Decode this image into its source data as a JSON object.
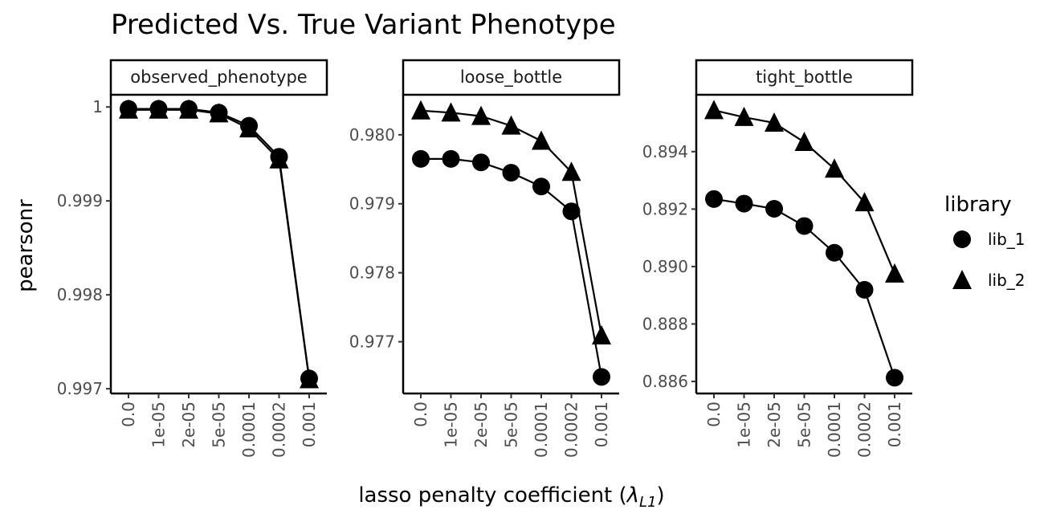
{
  "chart_data": {
    "type": "line",
    "title": "Predicted Vs. True Variant Phenotype",
    "xlabel_prefix": "lasso penalty coefficient (",
    "xlabel_symbol": "λ",
    "xlabel_subscript": "L1",
    "xlabel_suffix": ")",
    "ylabel": "pearsonr",
    "categories": [
      "0.0",
      "1e-05",
      "2e-05",
      "5e-05",
      "0.0001",
      "0.0002",
      "0.001"
    ],
    "legend": {
      "title": "library",
      "entries": [
        {
          "name": "lib_1",
          "marker": "circle"
        },
        {
          "name": "lib_2",
          "marker": "triangle"
        }
      ]
    },
    "panels": [
      {
        "strip": "observed_phenotype",
        "ylim": [
          0.99695,
          1.00013
        ],
        "yticks": [
          0.997,
          0.998,
          0.999,
          1
        ],
        "ytick_labels": [
          "0.997",
          "0.998",
          "0.999",
          "1"
        ],
        "series": [
          {
            "name": "lib_1",
            "marker": "circle",
            "values": [
              0.99998,
              0.99998,
              0.99998,
              0.99994,
              0.9998,
              0.99947,
              0.99711
            ]
          },
          {
            "name": "lib_2",
            "marker": "triangle",
            "values": [
              0.99997,
              0.99997,
              0.99997,
              0.99993,
              0.99977,
              0.99944,
              0.9971
            ]
          }
        ]
      },
      {
        "strip": "loose_bottle",
        "ylim": [
          0.97625,
          0.98058
        ],
        "yticks": [
          0.977,
          0.978,
          0.979,
          0.98
        ],
        "ytick_labels": [
          "0.977",
          "0.978",
          "0.979",
          "0.980"
        ],
        "series": [
          {
            "name": "lib_1",
            "marker": "circle",
            "values": [
              0.97965,
              0.97965,
              0.9796,
              0.97945,
              0.97925,
              0.97889,
              0.97649
            ]
          },
          {
            "name": "lib_2",
            "marker": "triangle",
            "values": [
              0.98035,
              0.98032,
              0.98027,
              0.98013,
              0.97991,
              0.97946,
              0.97709
            ]
          }
        ]
      },
      {
        "strip": "tight_bottle",
        "ylim": [
          0.88558,
          0.89598
        ],
        "yticks": [
          0.886,
          0.888,
          0.89,
          0.892,
          0.894
        ],
        "ytick_labels": [
          "0.886",
          "0.888",
          "0.890",
          "0.892",
          "0.894"
        ],
        "series": [
          {
            "name": "lib_1",
            "marker": "circle",
            "values": [
              0.89235,
              0.89219,
              0.89201,
              0.89141,
              0.89048,
              0.88919,
              0.88613
            ]
          },
          {
            "name": "lib_2",
            "marker": "triangle",
            "values": [
              0.89544,
              0.8952,
              0.895,
              0.89433,
              0.8934,
              0.89223,
              0.88975
            ]
          }
        ]
      }
    ],
    "grid": false,
    "legend_position": "right"
  }
}
